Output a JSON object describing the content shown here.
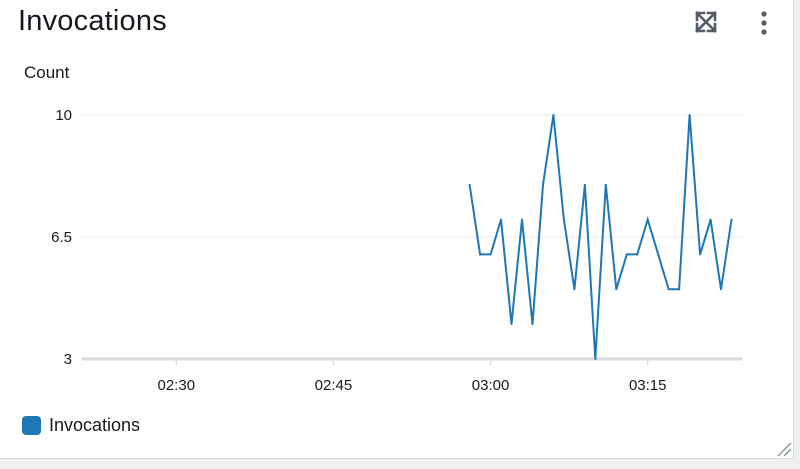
{
  "widget": {
    "title": "Invocations",
    "colors": {
      "series": "#1f77b4",
      "grid": "#e9ebed",
      "axis": "#d5dbdb"
    }
  },
  "chart_data": {
    "type": "line",
    "ylabel": "Count",
    "ylim": [
      3,
      10
    ],
    "yticks": [
      3,
      6.5,
      10
    ],
    "ytick_labels": [
      "3",
      "6.5",
      "10"
    ],
    "xlim": [
      "02:21",
      "03:24"
    ],
    "xticks": [
      "02:30",
      "02:45",
      "03:00",
      "03:15"
    ],
    "grid": true,
    "legend_position": "bottom-left",
    "series": [
      {
        "name": "Invocations",
        "color": "#1f77b4",
        "x": [
          "02:58",
          "02:59",
          "03:00",
          "03:01",
          "03:02",
          "03:03",
          "03:04",
          "03:05",
          "03:06",
          "03:07",
          "03:08",
          "03:09",
          "03:10",
          "03:11",
          "03:12",
          "03:13",
          "03:14",
          "03:15",
          "03:16",
          "03:17",
          "03:18",
          "03:19",
          "03:20",
          "03:21",
          "03:22",
          "03:23"
        ],
        "values": [
          8,
          6,
          6,
          7,
          4,
          7,
          4,
          8,
          10,
          7,
          5,
          8,
          3,
          8,
          5,
          6,
          6,
          7,
          6,
          5,
          5,
          10,
          6,
          7,
          5,
          7
        ]
      }
    ]
  }
}
